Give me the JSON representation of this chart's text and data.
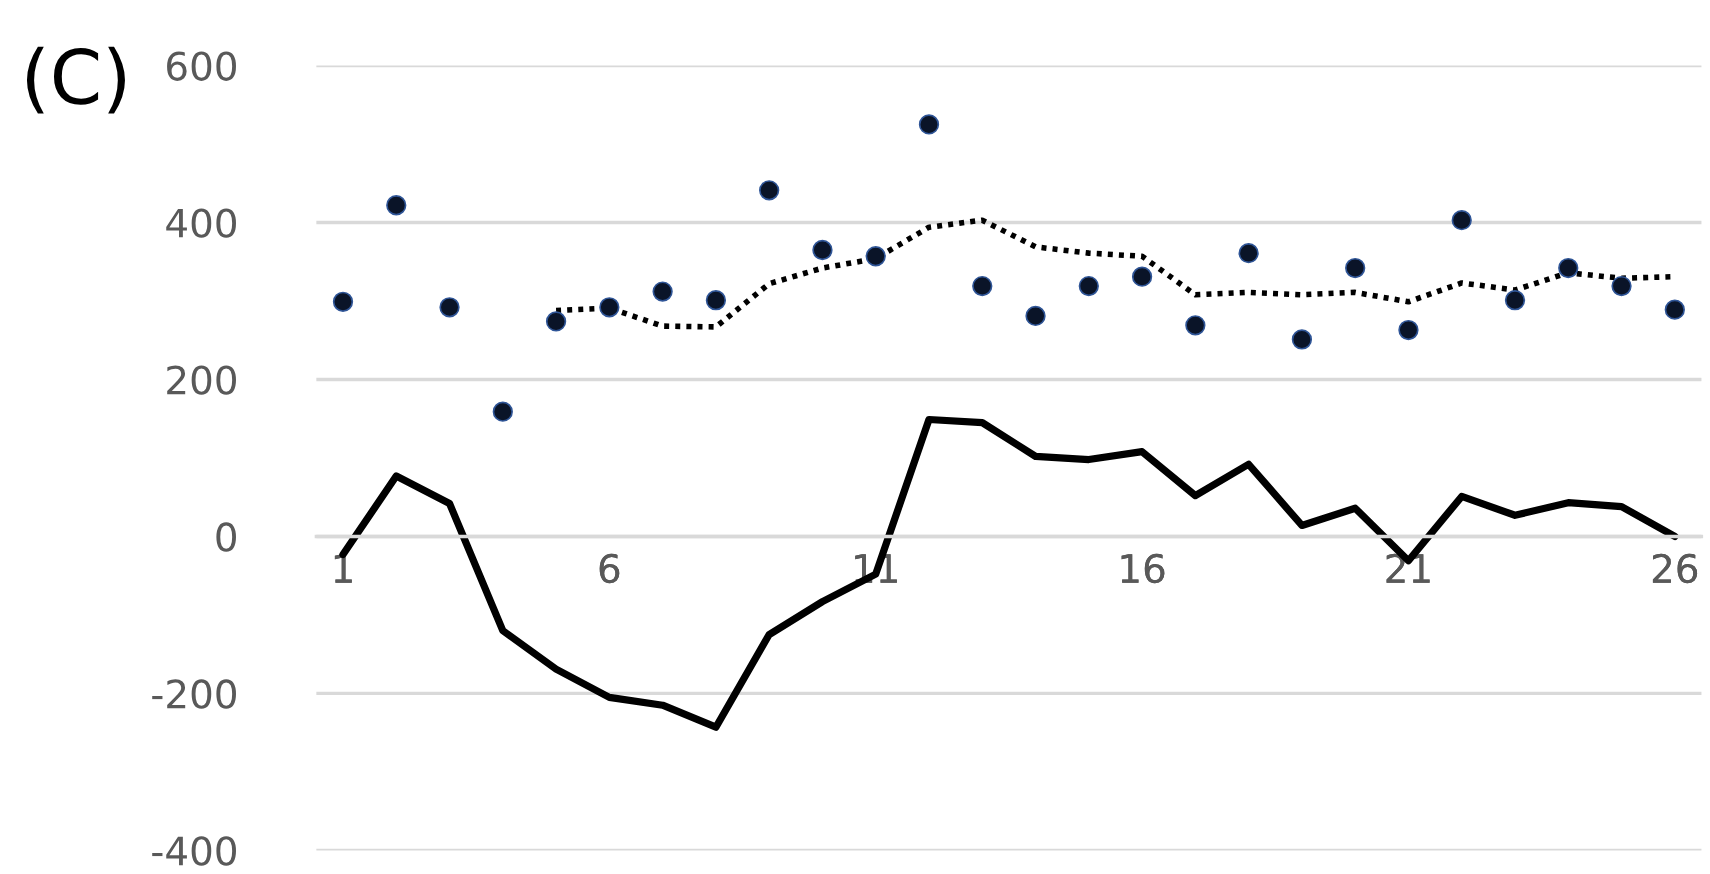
{
  "chart_data": {
    "type": "line",
    "title": "(C)",
    "xlim": [
      0.5,
      26.5
    ],
    "xticks": [
      1,
      6,
      11,
      16,
      21,
      26
    ],
    "ylim": [
      -400,
      600
    ],
    "yticks": [
      -400,
      -200,
      0,
      200,
      400,
      600
    ],
    "grid": "y",
    "series": [
      {
        "type": "scatter",
        "marker": "circle",
        "color": "#0a1428",
        "x": [
          1,
          2,
          3,
          4,
          5,
          6,
          7,
          8,
          9,
          10,
          11,
          12,
          13,
          14,
          15,
          16,
          17,
          18,
          19,
          20,
          21,
          22,
          23,
          24,
          25,
          26
        ],
        "values": [
          299,
          422,
          292,
          159,
          274,
          292,
          312,
          301,
          441,
          365,
          357,
          525,
          319,
          281,
          319,
          331,
          269,
          361,
          251,
          342,
          263,
          403,
          301,
          342,
          319,
          289
        ]
      },
      {
        "line_style": "dotted",
        "color": "#000000",
        "x": [
          5,
          6,
          7,
          8,
          9,
          10,
          11,
          12,
          13,
          14,
          15,
          16,
          17,
          18,
          19,
          20,
          21,
          22,
          23,
          24,
          25,
          26
        ],
        "values": [
          288,
          291,
          268,
          267,
          322,
          342,
          354,
          394,
          403,
          369,
          361,
          357,
          308,
          311,
          308,
          311,
          299,
          323,
          314,
          336,
          329,
          331
        ]
      },
      {
        "line_style": "solid",
        "color": "#000000",
        "x": [
          1,
          2,
          3,
          4,
          5,
          6,
          7,
          8,
          9,
          10,
          11,
          12,
          13,
          14,
          15,
          16,
          17,
          18,
          19,
          20,
          21,
          22,
          23,
          24,
          25,
          26
        ],
        "values": [
          -23,
          77,
          42,
          -120,
          -169,
          -205,
          -215,
          -243,
          -125,
          -83,
          -48,
          149,
          145,
          102,
          98,
          108,
          52,
          92,
          14,
          36,
          -31,
          51,
          27,
          43,
          38,
          0
        ]
      }
    ]
  }
}
